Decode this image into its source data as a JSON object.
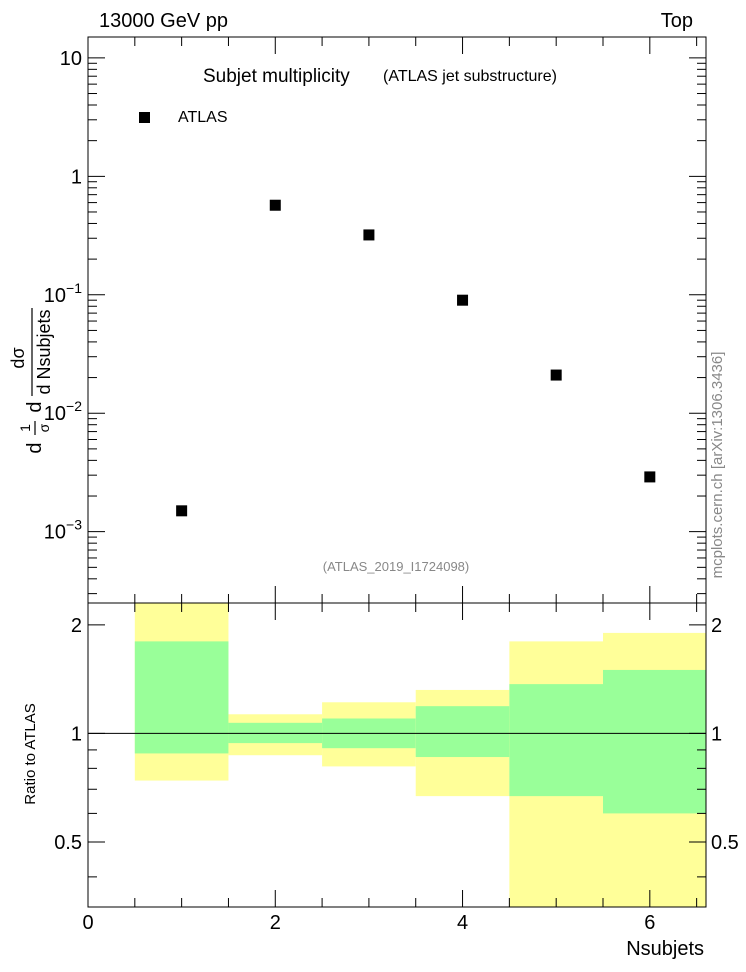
{
  "header": {
    "left": "13000 GeV pp",
    "right": "Top"
  },
  "side_label": "mcplots.cern.ch [arXiv:1306.3436]",
  "chart_data": [
    {
      "type": "scatter",
      "title": "Subjet multiplicity",
      "subtitle": "(ATLAS jet substructure)",
      "analysis_id": "(ATLAS_2019_I1724098)",
      "ylabel": {
        "ratio": "1",
        "sigma": "σ",
        "d": "d",
        "num": "dσ",
        "den": "d Nsubjets"
      },
      "yscale": "log",
      "ylim": [
        0.00025,
        15
      ],
      "xlim": [
        0,
        6.6
      ],
      "ytick_labels": [
        {
          "value": 10,
          "base": "10",
          "exp": ""
        },
        {
          "value": 1,
          "base": "1",
          "exp": ""
        },
        {
          "value": 0.1,
          "base": "10",
          "exp": "−1"
        },
        {
          "value": 0.01,
          "base": "10",
          "exp": "−2"
        },
        {
          "value": 0.001,
          "base": "10",
          "exp": "−3"
        }
      ],
      "legend": {
        "entry": "ATLAS",
        "placement": "top-left"
      },
      "series": [
        {
          "name": "ATLAS",
          "x": [
            1,
            2,
            3,
            4,
            5,
            6
          ],
          "y": [
            0.0015,
            0.57,
            0.32,
            0.09,
            0.021,
            0.0029
          ]
        }
      ]
    },
    {
      "type": "area",
      "ylabel": "Ratio to ATLAS",
      "xlabel": "Nsubjets",
      "xlim": [
        0,
        6.6
      ],
      "ylim": [
        0.33,
        2.3
      ],
      "xtick_labels": [
        "0",
        "2",
        "4",
        "6"
      ],
      "ytick_labels": [
        "0.5",
        "1",
        "2"
      ],
      "reference_line": 1,
      "bins": [
        {
          "lo": 0.5,
          "hi": 1.5,
          "green": [
            0.88,
            1.8
          ],
          "yellow": [
            0.74,
            2.3
          ]
        },
        {
          "lo": 1.5,
          "hi": 2.5,
          "green": [
            0.94,
            1.07
          ],
          "yellow": [
            0.87,
            1.13
          ]
        },
        {
          "lo": 2.5,
          "hi": 3.5,
          "green": [
            0.91,
            1.1
          ],
          "yellow": [
            0.81,
            1.22
          ]
        },
        {
          "lo": 3.5,
          "hi": 4.5,
          "green": [
            0.86,
            1.19
          ],
          "yellow": [
            0.67,
            1.32
          ]
        },
        {
          "lo": 4.5,
          "hi": 5.5,
          "green": [
            0.67,
            1.37
          ],
          "yellow": [
            0.33,
            1.8
          ]
        },
        {
          "lo": 5.5,
          "hi": 6.6,
          "green": [
            0.6,
            1.5
          ],
          "yellow": [
            0.33,
            1.9
          ]
        }
      ],
      "colors": {
        "green": "#99ff99",
        "yellow": "#ffff99"
      }
    }
  ]
}
